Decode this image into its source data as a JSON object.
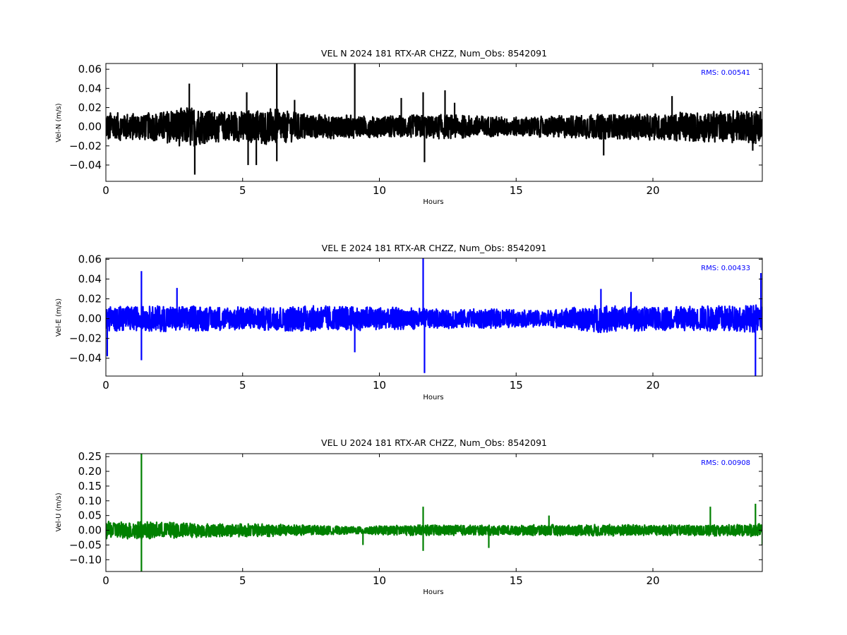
{
  "chart_data": [
    {
      "type": "line",
      "title": "VEL N 2024 181 RTX-AR  CHZZ, Num_Obs: 8542091",
      "xlabel": "Hours",
      "ylabel": "Vel-N (m/s)",
      "color": "#000000",
      "xlim": [
        0,
        24
      ],
      "ylim": [
        -0.057,
        0.066
      ],
      "xticks": [
        0,
        5,
        10,
        15,
        20
      ],
      "xtick_labels": [
        "0",
        "5",
        "10",
        "15",
        "20"
      ],
      "yticks": [
        -0.04,
        -0.02,
        0.0,
        0.02,
        0.04,
        0.06
      ],
      "ytick_labels": [
        "−0.04",
        "−0.02",
        "0.00",
        "0.02",
        "0.04",
        "0.06"
      ],
      "rms_label": "RMS:  0.00541",
      "noise_envelope": {
        "hours": [
          0,
          1,
          2,
          2.5,
          3,
          3.5,
          4,
          5,
          6,
          7,
          8,
          9,
          10,
          11,
          12,
          13,
          14,
          15,
          16,
          17,
          18,
          19,
          20,
          21,
          22,
          23,
          24
        ],
        "half_amplitude": [
          0.015,
          0.014,
          0.015,
          0.019,
          0.022,
          0.018,
          0.016,
          0.017,
          0.019,
          0.015,
          0.013,
          0.012,
          0.011,
          0.012,
          0.013,
          0.012,
          0.011,
          0.01,
          0.011,
          0.012,
          0.013,
          0.013,
          0.014,
          0.015,
          0.016,
          0.017,
          0.018
        ]
      },
      "spikes": [
        {
          "hour": 3.05,
          "value": 0.045
        },
        {
          "hour": 3.25,
          "value": -0.05
        },
        {
          "hour": 5.15,
          "value": 0.036
        },
        {
          "hour": 5.2,
          "value": -0.04
        },
        {
          "hour": 5.5,
          "value": -0.04
        },
        {
          "hour": 6.25,
          "value": 0.066
        },
        {
          "hour": 6.25,
          "value": -0.036
        },
        {
          "hour": 6.9,
          "value": 0.028
        },
        {
          "hour": 9.1,
          "value": 0.066
        },
        {
          "hour": 10.8,
          "value": 0.03
        },
        {
          "hour": 11.6,
          "value": 0.036
        },
        {
          "hour": 11.65,
          "value": -0.037
        },
        {
          "hour": 12.4,
          "value": 0.038
        },
        {
          "hour": 12.75,
          "value": 0.025
        },
        {
          "hour": 18.2,
          "value": -0.03
        },
        {
          "hour": 20.7,
          "value": 0.032
        },
        {
          "hour": 23.65,
          "value": -0.025
        }
      ]
    },
    {
      "type": "line",
      "title": "VEL E 2024 181 RTX-AR  CHZZ, Num_Obs: 8542091",
      "xlabel": "Hours",
      "ylabel": "Vel-E (m/s)",
      "color": "#0000ff",
      "xlim": [
        0,
        24
      ],
      "ylim": [
        -0.058,
        0.061
      ],
      "xticks": [
        0,
        5,
        10,
        15,
        20
      ],
      "xtick_labels": [
        "0",
        "5",
        "10",
        "15",
        "20"
      ],
      "yticks": [
        -0.04,
        -0.02,
        0.0,
        0.02,
        0.04,
        0.06
      ],
      "ytick_labels": [
        "−0.04",
        "−0.02",
        "0.00",
        "0.02",
        "0.04",
        "0.06"
      ],
      "rms_label": "RMS:  0.00433",
      "noise_envelope": {
        "hours": [
          0,
          1,
          2,
          3,
          4,
          5,
          6,
          7,
          8,
          9,
          10,
          11,
          12,
          13,
          14,
          15,
          16,
          17,
          18,
          19,
          20,
          21,
          22,
          23,
          24
        ],
        "half_amplitude": [
          0.013,
          0.012,
          0.013,
          0.013,
          0.012,
          0.012,
          0.012,
          0.013,
          0.013,
          0.012,
          0.012,
          0.011,
          0.01,
          0.01,
          0.01,
          0.009,
          0.008,
          0.011,
          0.014,
          0.013,
          0.012,
          0.012,
          0.013,
          0.013,
          0.014
        ]
      },
      "spikes": [
        {
          "hour": 0.05,
          "value": -0.038
        },
        {
          "hour": 1.3,
          "value": 0.048
        },
        {
          "hour": 1.3,
          "value": -0.042
        },
        {
          "hour": 2.6,
          "value": 0.031
        },
        {
          "hour": 9.1,
          "value": -0.034
        },
        {
          "hour": 11.6,
          "value": 0.061
        },
        {
          "hour": 11.65,
          "value": -0.055
        },
        {
          "hour": 18.1,
          "value": 0.03
        },
        {
          "hour": 19.2,
          "value": 0.027
        },
        {
          "hour": 23.75,
          "value": -0.058
        },
        {
          "hour": 23.95,
          "value": 0.046
        }
      ]
    },
    {
      "type": "line",
      "title": "VEL U 2024 181 RTX-AR  CHZZ, Num_Obs: 8542091",
      "xlabel": "Hours",
      "ylabel": "Vel-U (m/s)",
      "color": "#008000",
      "xlim": [
        0,
        24
      ],
      "ylim": [
        -0.14,
        0.26
      ],
      "xticks": [
        0,
        5,
        10,
        15,
        20
      ],
      "xtick_labels": [
        "0",
        "5",
        "10",
        "15",
        "20"
      ],
      "yticks": [
        -0.1,
        -0.05,
        0.0,
        0.05,
        0.1,
        0.15,
        0.2,
        0.25
      ],
      "ytick_labels": [
        "−0.10",
        "−0.05",
        "0.00",
        "0.05",
        "0.10",
        "0.15",
        "0.20",
        "0.25"
      ],
      "rms_label": "RMS:  0.00908",
      "noise_envelope": {
        "hours": [
          0,
          1,
          2,
          3,
          4,
          5,
          6,
          7,
          8,
          9,
          10,
          11,
          12,
          13,
          14,
          15,
          16,
          17,
          18,
          19,
          20,
          21,
          22,
          23,
          24
        ],
        "half_amplitude": [
          0.03,
          0.03,
          0.028,
          0.026,
          0.022,
          0.022,
          0.022,
          0.018,
          0.016,
          0.012,
          0.015,
          0.018,
          0.018,
          0.017,
          0.017,
          0.016,
          0.02,
          0.018,
          0.02,
          0.02,
          0.018,
          0.018,
          0.02,
          0.02,
          0.022
        ]
      },
      "spikes": [
        {
          "hour": 1.3,
          "value": 0.26
        },
        {
          "hour": 1.3,
          "value": -0.14
        },
        {
          "hour": 9.4,
          "value": -0.05
        },
        {
          "hour": 11.6,
          "value": 0.08
        },
        {
          "hour": 11.6,
          "value": -0.07
        },
        {
          "hour": 14.0,
          "value": -0.06
        },
        {
          "hour": 16.2,
          "value": 0.05
        },
        {
          "hour": 22.1,
          "value": 0.08
        },
        {
          "hour": 23.75,
          "value": 0.09
        },
        {
          "hour": 24.0,
          "value": -0.05
        }
      ]
    }
  ]
}
